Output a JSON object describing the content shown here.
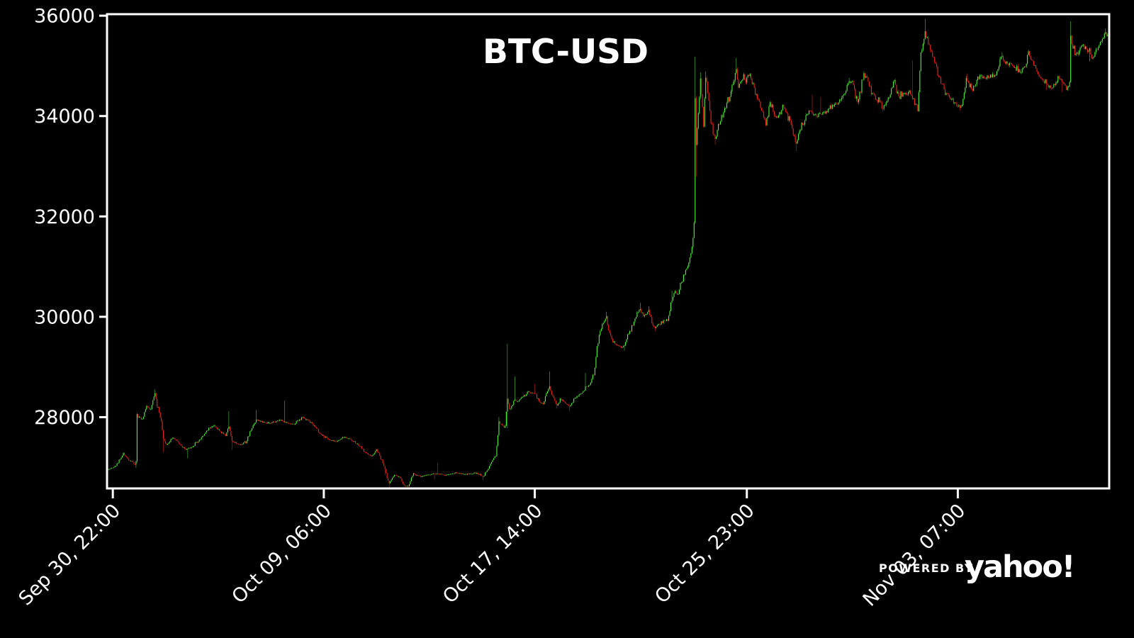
{
  "window": {
    "background": "#000000"
  },
  "branding": {
    "powered_by": "POWERED BY",
    "brand": "yahoo!"
  },
  "chart_data": {
    "type": "candlestick",
    "title": "BTC-USD",
    "symbol": "BTC-USD",
    "xlabel": "",
    "ylabel": "",
    "grid": false,
    "background": "#000000",
    "axis_color": "#ffffff",
    "up_color": "#53f23a",
    "down_color": "#f2261c",
    "ylim": [
      26580,
      36030
    ],
    "y_ticks": [
      36000,
      34000,
      32000,
      30000,
      28000
    ],
    "x_ticks": [
      {
        "hour": 5,
        "label": "Sep 30, 22:00"
      },
      {
        "hour": 205,
        "label": "Oct 09, 06:00"
      },
      {
        "hour": 405,
        "label": "Oct 17, 14:00"
      },
      {
        "hour": 606,
        "label": "Oct 25, 23:00"
      },
      {
        "hour": 806,
        "label": "Nov 03, 07:00"
      }
    ],
    "interval": "1h",
    "total_hours": 950,
    "candle_count": 949,
    "seed": 11,
    "first_open": 26930,
    "waypoints": [
      [
        0,
        26950
      ],
      [
        8,
        27030
      ],
      [
        15,
        27280
      ],
      [
        20,
        27150
      ],
      [
        27,
        27060
      ],
      [
        28,
        28030
      ],
      [
        33,
        27950
      ],
      [
        37,
        28230
      ],
      [
        40,
        28150
      ],
      [
        45,
        28470
      ],
      [
        47,
        28250
      ],
      [
        50,
        28050
      ],
      [
        53,
        27550
      ],
      [
        56,
        27450
      ],
      [
        62,
        27600
      ],
      [
        68,
        27480
      ],
      [
        74,
        27350
      ],
      [
        80,
        27400
      ],
      [
        87,
        27550
      ],
      [
        95,
        27750
      ],
      [
        101,
        27840
      ],
      [
        107,
        27700
      ],
      [
        112,
        27650
      ],
      [
        115,
        27820
      ],
      [
        118,
        27520
      ],
      [
        125,
        27450
      ],
      [
        131,
        27500
      ],
      [
        136,
        27750
      ],
      [
        141,
        27950
      ],
      [
        147,
        27900
      ],
      [
        155,
        27880
      ],
      [
        163,
        27950
      ],
      [
        170,
        27890
      ],
      [
        177,
        27860
      ],
      [
        184,
        27990
      ],
      [
        190,
        27940
      ],
      [
        196,
        27830
      ],
      [
        203,
        27650
      ],
      [
        210,
        27550
      ],
      [
        217,
        27520
      ],
      [
        224,
        27600
      ],
      [
        231,
        27550
      ],
      [
        238,
        27450
      ],
      [
        244,
        27300
      ],
      [
        250,
        27230
      ],
      [
        255,
        27340
      ],
      [
        260,
        27150
      ],
      [
        263,
        26950
      ],
      [
        267,
        26680
      ],
      [
        272,
        26850
      ],
      [
        277,
        26800
      ],
      [
        281,
        26640
      ],
      [
        285,
        26620
      ],
      [
        290,
        26870
      ],
      [
        297,
        26820
      ],
      [
        303,
        26850
      ],
      [
        310,
        26880
      ],
      [
        320,
        26850
      ],
      [
        330,
        26890
      ],
      [
        340,
        26860
      ],
      [
        350,
        26890
      ],
      [
        356,
        26820
      ],
      [
        360,
        26950
      ],
      [
        364,
        27100
      ],
      [
        368,
        27250
      ],
      [
        371,
        27900
      ],
      [
        374,
        27850
      ],
      [
        377,
        27780
      ],
      [
        379,
        28390
      ],
      [
        381,
        28150
      ],
      [
        384,
        28260
      ],
      [
        386,
        28350
      ],
      [
        389,
        28300
      ],
      [
        392,
        28380
      ],
      [
        395,
        28430
      ],
      [
        399,
        28520
      ],
      [
        403,
        28480
      ],
      [
        405,
        28500
      ],
      [
        407,
        28400
      ],
      [
        410,
        28300
      ],
      [
        413,
        28250
      ],
      [
        416,
        28450
      ],
      [
        419,
        28620
      ],
      [
        422,
        28400
      ],
      [
        426,
        28230
      ],
      [
        429,
        28350
      ],
      [
        434,
        28280
      ],
      [
        438,
        28220
      ],
      [
        442,
        28350
      ],
      [
        447,
        28440
      ],
      [
        450,
        28500
      ],
      [
        453,
        28600
      ],
      [
        455,
        28620
      ],
      [
        458,
        28700
      ],
      [
        461,
        28850
      ],
      [
        464,
        29400
      ],
      [
        467,
        29700
      ],
      [
        470,
        29900
      ],
      [
        473,
        29980
      ],
      [
        476,
        29650
      ],
      [
        479,
        29500
      ],
      [
        483,
        29450
      ],
      [
        487,
        29400
      ],
      [
        490,
        29450
      ],
      [
        494,
        29650
      ],
      [
        498,
        29850
      ],
      [
        502,
        30050
      ],
      [
        505,
        30180
      ],
      [
        508,
        29990
      ],
      [
        511,
        30050
      ],
      [
        513,
        30130
      ],
      [
        516,
        29900
      ],
      [
        519,
        29780
      ],
      [
        523,
        29850
      ],
      [
        527,
        29900
      ],
      [
        531,
        29920
      ],
      [
        535,
        30350
      ],
      [
        538,
        30500
      ],
      [
        541,
        30450
      ],
      [
        544,
        30700
      ],
      [
        548,
        30900
      ],
      [
        551,
        31100
      ],
      [
        554,
        31400
      ],
      [
        556,
        31700
      ],
      [
        557,
        34400
      ],
      [
        558,
        33450
      ],
      [
        560,
        34100
      ],
      [
        562,
        34750
      ],
      [
        564,
        34100
      ],
      [
        565,
        33850
      ],
      [
        567,
        34800
      ],
      [
        569,
        34400
      ],
      [
        572,
        33900
      ],
      [
        576,
        33520
      ],
      [
        579,
        33800
      ],
      [
        583,
        34050
      ],
      [
        587,
        34250
      ],
      [
        590,
        34400
      ],
      [
        593,
        34700
      ],
      [
        596,
        34900
      ],
      [
        598,
        34550
      ],
      [
        600,
        34650
      ],
      [
        602,
        34800
      ],
      [
        605,
        34700
      ],
      [
        607,
        34780
      ],
      [
        609,
        34820
      ],
      [
        612,
        34600
      ],
      [
        615,
        34400
      ],
      [
        618,
        34250
      ],
      [
        621,
        34050
      ],
      [
        624,
        33850
      ],
      [
        628,
        34280
      ],
      [
        631,
        34100
      ],
      [
        634,
        33950
      ],
      [
        638,
        34100
      ],
      [
        641,
        34200
      ],
      [
        644,
        34050
      ],
      [
        647,
        33900
      ],
      [
        650,
        33650
      ],
      [
        653,
        33420
      ],
      [
        656,
        33700
      ],
      [
        660,
        33900
      ],
      [
        663,
        34050
      ],
      [
        666,
        34100
      ],
      [
        669,
        34050
      ],
      [
        672,
        34000
      ],
      [
        676,
        34050
      ],
      [
        680,
        34100
      ],
      [
        684,
        34150
      ],
      [
        688,
        34220
      ],
      [
        691,
        34270
      ],
      [
        694,
        34300
      ],
      [
        699,
        34500
      ],
      [
        703,
        34680
      ],
      [
        706,
        34700
      ],
      [
        709,
        34400
      ],
      [
        712,
        34300
      ],
      [
        716,
        34750
      ],
      [
        719,
        34830
      ],
      [
        723,
        34550
      ],
      [
        727,
        34380
      ],
      [
        731,
        34300
      ],
      [
        735,
        34120
      ],
      [
        738,
        34250
      ],
      [
        740,
        34350
      ],
      [
        743,
        34550
      ],
      [
        746,
        34700
      ],
      [
        749,
        34450
      ],
      [
        751,
        34400
      ],
      [
        754,
        34480
      ],
      [
        757,
        34430
      ],
      [
        760,
        34500
      ],
      [
        763,
        34350
      ],
      [
        766,
        34250
      ],
      [
        768,
        34160
      ],
      [
        769,
        34400
      ],
      [
        770,
        34900
      ],
      [
        771,
        35250
      ],
      [
        773,
        35450
      ],
      [
        775,
        35700
      ],
      [
        777,
        35550
      ],
      [
        779,
        35400
      ],
      [
        781,
        35300
      ],
      [
        783,
        35150
      ],
      [
        785,
        35050
      ],
      [
        788,
        34800
      ],
      [
        791,
        34600
      ],
      [
        794,
        34450
      ],
      [
        796,
        34450
      ],
      [
        800,
        34350
      ],
      [
        804,
        34250
      ],
      [
        808,
        34140
      ],
      [
        811,
        34300
      ],
      [
        814,
        34750
      ],
      [
        817,
        34600
      ],
      [
        820,
        34550
      ],
      [
        823,
        34650
      ],
      [
        827,
        34800
      ],
      [
        831,
        34750
      ],
      [
        834,
        34800
      ],
      [
        838,
        34780
      ],
      [
        842,
        34850
      ],
      [
        845,
        35000
      ],
      [
        847,
        35180
      ],
      [
        851,
        35050
      ],
      [
        855,
        35050
      ],
      [
        858,
        34980
      ],
      [
        862,
        34950
      ],
      [
        866,
        34880
      ],
      [
        870,
        35000
      ],
      [
        873,
        35230
      ],
      [
        876,
        35100
      ],
      [
        879,
        35000
      ],
      [
        883,
        34800
      ],
      [
        887,
        34700
      ],
      [
        891,
        34600
      ],
      [
        895,
        34560
      ],
      [
        898,
        34650
      ],
      [
        901,
        34750
      ],
      [
        904,
        34700
      ],
      [
        907,
        34600
      ],
      [
        909,
        34550
      ],
      [
        912,
        34600
      ],
      [
        913,
        35500
      ],
      [
        915,
        35350
      ],
      [
        918,
        35200
      ],
      [
        921,
        35300
      ],
      [
        924,
        35400
      ],
      [
        928,
        35350
      ],
      [
        931,
        35300
      ],
      [
        933,
        35150
      ],
      [
        936,
        35250
      ],
      [
        939,
        35400
      ],
      [
        942,
        35500
      ],
      [
        945,
        35650
      ],
      [
        948,
        35560
      ]
    ],
    "spike_highs": [
      [
        28,
        28075
      ],
      [
        45,
        28550
      ],
      [
        115,
        28120
      ],
      [
        141,
        28140
      ],
      [
        168,
        28330
      ],
      [
        313,
        27090
      ],
      [
        371,
        28000
      ],
      [
        379,
        29460
      ],
      [
        386,
        28810
      ],
      [
        405,
        28660
      ],
      [
        419,
        28910
      ],
      [
        453,
        28880
      ],
      [
        464,
        29030
      ],
      [
        473,
        30100
      ],
      [
        505,
        30280
      ],
      [
        513,
        30210
      ],
      [
        535,
        30520
      ],
      [
        557,
        35180
      ],
      [
        562,
        34870
      ],
      [
        567,
        34890
      ],
      [
        596,
        35160
      ],
      [
        668,
        34420
      ],
      [
        676,
        34380
      ],
      [
        703,
        34760
      ],
      [
        717,
        34890
      ],
      [
        746,
        34730
      ],
      [
        763,
        35110
      ],
      [
        775,
        35935
      ],
      [
        815,
        34850
      ],
      [
        848,
        35270
      ],
      [
        873,
        35320
      ],
      [
        913,
        35890
      ],
      [
        946,
        35745
      ]
    ],
    "spike_lows": [
      [
        27,
        26990
      ],
      [
        53,
        27300
      ],
      [
        76,
        27180
      ],
      [
        118,
        27350
      ],
      [
        205,
        27580
      ],
      [
        263,
        26840
      ],
      [
        267,
        26590
      ],
      [
        285,
        26550
      ],
      [
        310,
        26760
      ],
      [
        356,
        26740
      ],
      [
        379,
        27780
      ],
      [
        426,
        28170
      ],
      [
        438,
        28110
      ],
      [
        490,
        29330
      ],
      [
        519,
        29710
      ],
      [
        558,
        32790
      ],
      [
        565,
        33770
      ],
      [
        576,
        33430
      ],
      [
        624,
        33790
      ],
      [
        653,
        33300
      ],
      [
        710,
        34300
      ],
      [
        735,
        34100
      ],
      [
        768,
        34140
      ],
      [
        808,
        34110
      ],
      [
        831,
        34740
      ],
      [
        890,
        34520
      ],
      [
        905,
        34480
      ],
      [
        931,
        35090
      ]
    ]
  }
}
